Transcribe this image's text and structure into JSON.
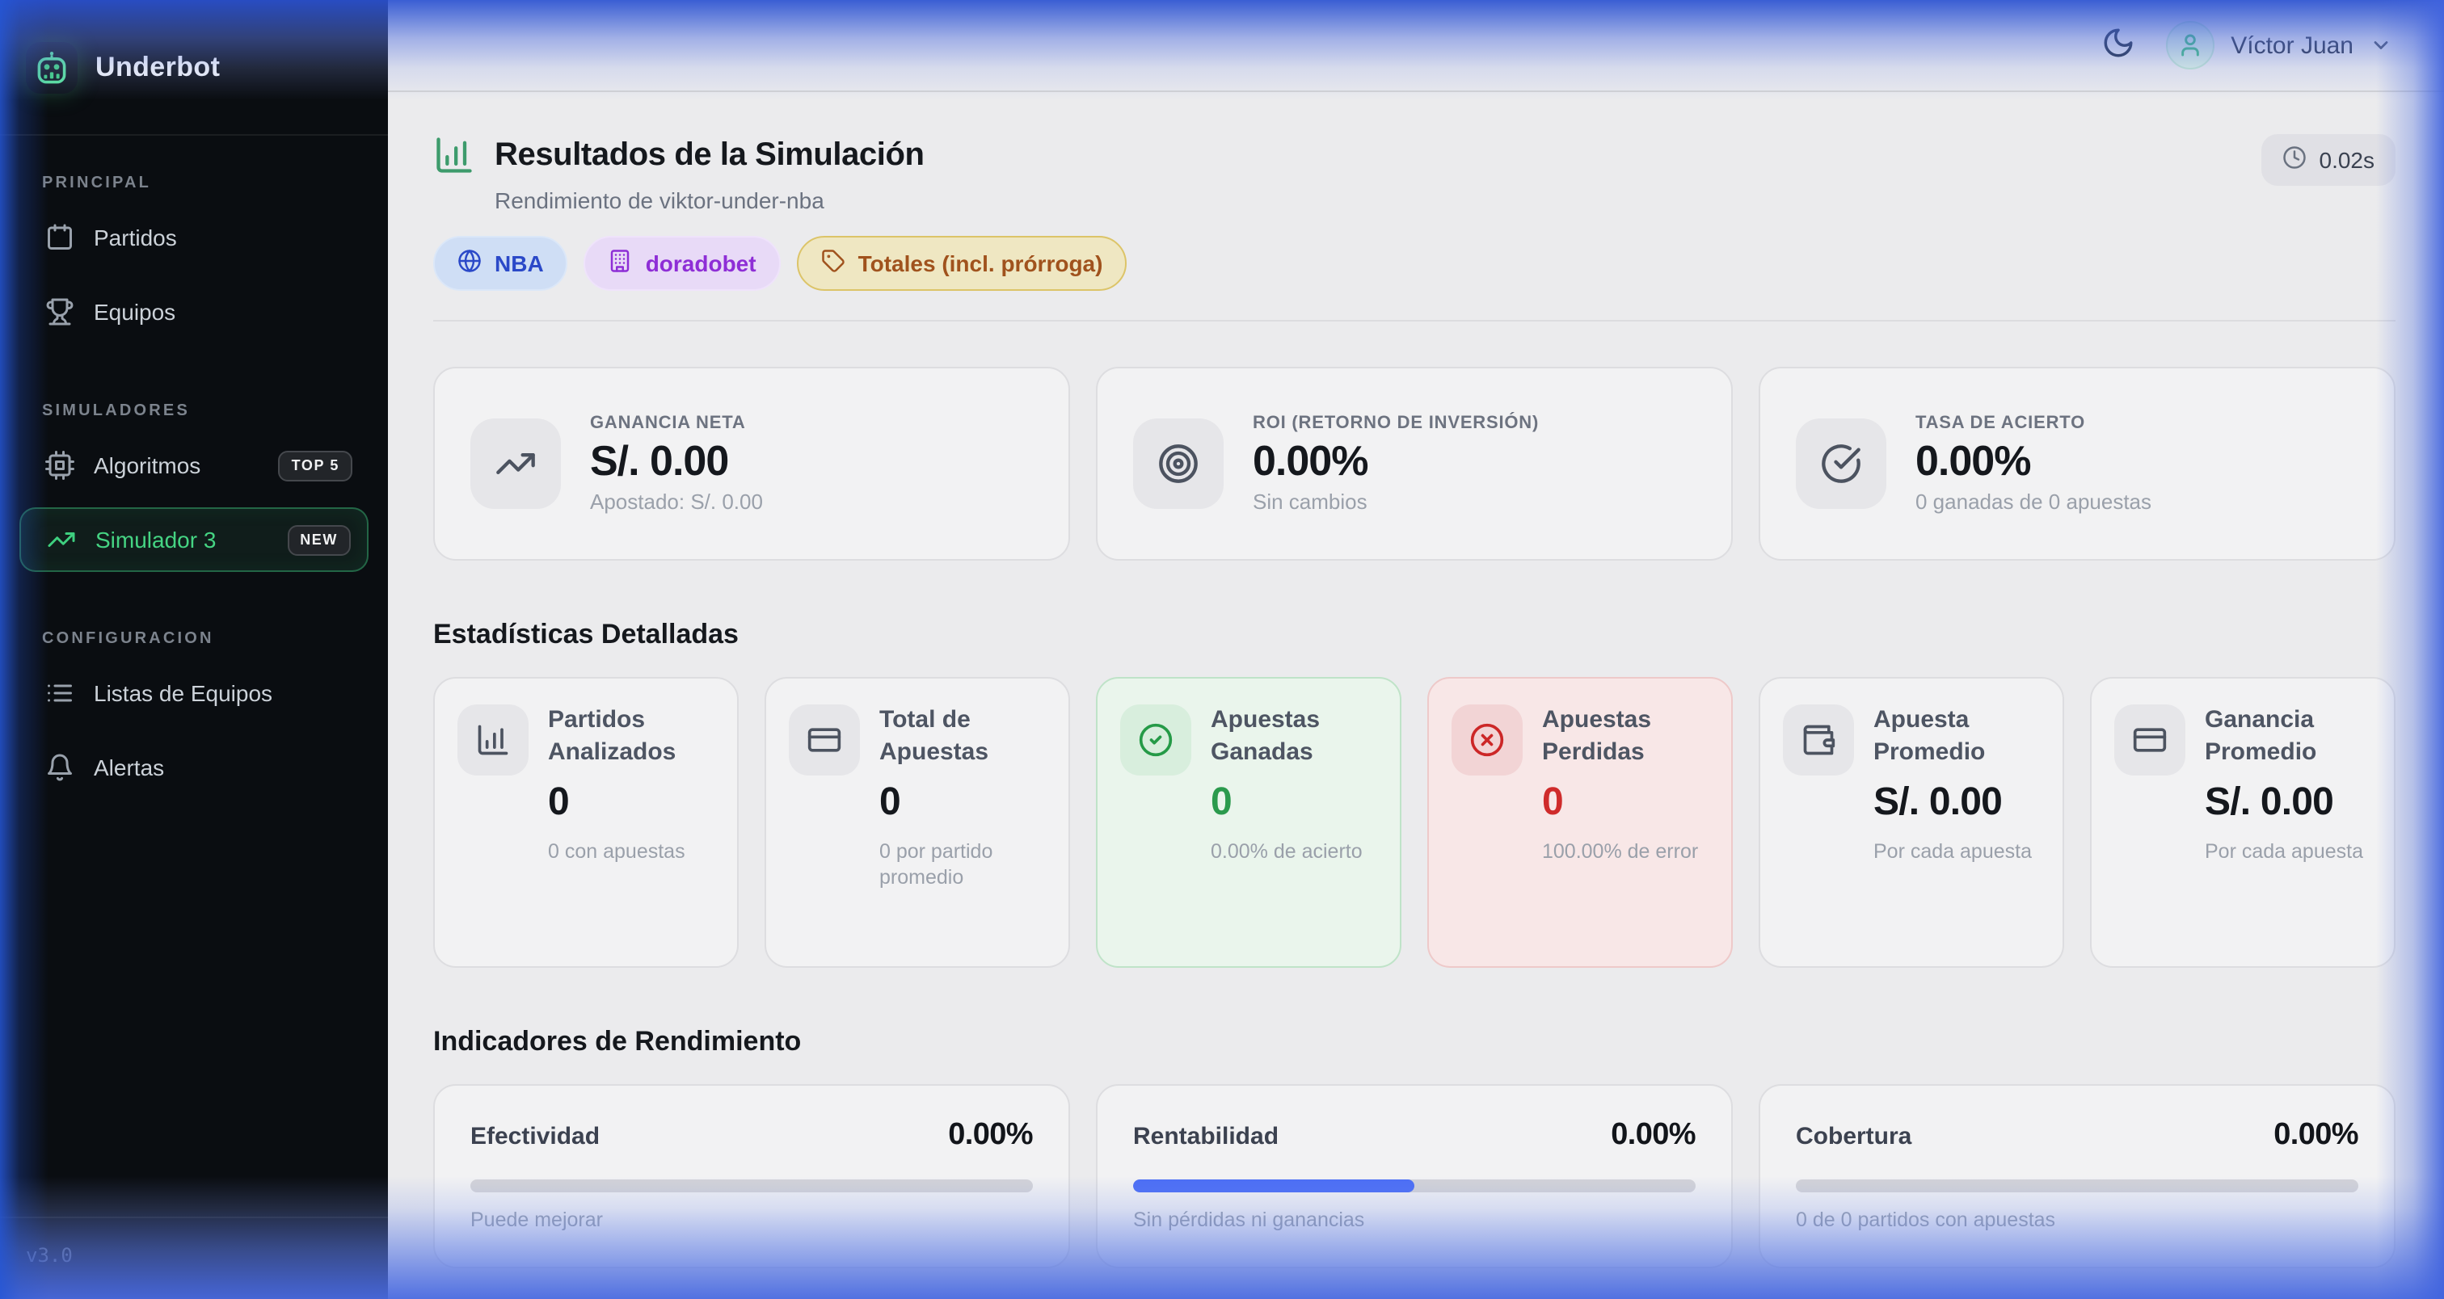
{
  "app": {
    "name": "Underbot",
    "version": "v3.0"
  },
  "sidebar": {
    "sections": [
      {
        "label": "PRINCIPAL",
        "items": [
          {
            "label": "Partidos",
            "icon": "calendar"
          },
          {
            "label": "Equipos",
            "icon": "trophy"
          }
        ]
      },
      {
        "label": "SIMULADORES",
        "items": [
          {
            "label": "Algoritmos",
            "icon": "cpu",
            "badge": "TOP 5"
          },
          {
            "label": "Simulador 3",
            "icon": "trending-up",
            "badge": "NEW",
            "active": true
          }
        ]
      },
      {
        "label": "CONFIGURACION",
        "items": [
          {
            "label": "Listas de Equipos",
            "icon": "list"
          },
          {
            "label": "Alertas",
            "icon": "bell"
          }
        ]
      }
    ]
  },
  "header": {
    "user_name": "Víctor Juan"
  },
  "page": {
    "title": "Resultados de la Simulación",
    "subtitle": "Rendimiento de viktor-under-nba",
    "execution_time": "0.02s",
    "badges": [
      {
        "label": "NBA",
        "icon": "globe",
        "variant": "blue"
      },
      {
        "label": "doradobet",
        "icon": "building",
        "variant": "purple"
      },
      {
        "label": "Totales (incl. prórroga)",
        "icon": "tag",
        "variant": "amber"
      }
    ]
  },
  "summary_cards": [
    {
      "label": "GANANCIA NETA",
      "value": "S/. 0.00",
      "sub": "Apostado: S/. 0.00",
      "icon": "trending-up"
    },
    {
      "label": "ROI (RETORNO DE INVERSIÓN)",
      "value": "0.00%",
      "sub": "Sin cambios",
      "icon": "target"
    },
    {
      "label": "TASA DE ACIERTO",
      "value": "0.00%",
      "sub": "0 ganadas de 0 apuestas",
      "icon": "check-big"
    }
  ],
  "detailed_stats": {
    "heading": "Estadísticas Detalladas",
    "cards": [
      {
        "label": "Partidos Analizados",
        "value": "0",
        "sub": "0 con apuestas",
        "icon": "bar-chart",
        "variant": "default"
      },
      {
        "label": "Total de Apuestas",
        "value": "0",
        "sub": "0 por partido promedio",
        "icon": "credit-card",
        "variant": "default"
      },
      {
        "label": "Apuestas Ganadas",
        "value": "0",
        "sub": "0.00% de acierto",
        "icon": "circle-check",
        "variant": "success"
      },
      {
        "label": "Apuestas Perdidas",
        "value": "0",
        "sub": "100.00% de error",
        "icon": "circle-x",
        "variant": "danger"
      },
      {
        "label": "Apuesta Promedio",
        "value": "S/. 0.00",
        "sub": "Por cada apuesta",
        "icon": "wallet",
        "variant": "default"
      },
      {
        "label": "Ganancia Promedio",
        "value": "S/. 0.00",
        "sub": "Por cada apuesta",
        "icon": "credit-card",
        "variant": "default"
      }
    ]
  },
  "performance": {
    "heading": "Indicadores de Rendimiento",
    "cards": [
      {
        "label": "Efectividad",
        "value": "0.00%",
        "progress": 0,
        "sub": "Puede mejorar"
      },
      {
        "label": "Rentabilidad",
        "value": "0.00%",
        "progress": 50,
        "sub": "Sin pérdidas ni ganancias"
      },
      {
        "label": "Cobertura",
        "value": "0.00%",
        "progress": 0,
        "sub": "0 de 0 partidos con apuestas"
      }
    ]
  },
  "colors": {
    "sidebar_active_green": "#45d483",
    "progress_fill_blue": "#4c6ef5",
    "success_green": "#2b9a4d",
    "danger_red": "#cf2b2b",
    "edge_glow_blue": "#4a6ee0",
    "badge_blue_text": "#2b49c8",
    "badge_purple_text": "#8e2ed6",
    "badge_amber_text": "#a0521d"
  }
}
